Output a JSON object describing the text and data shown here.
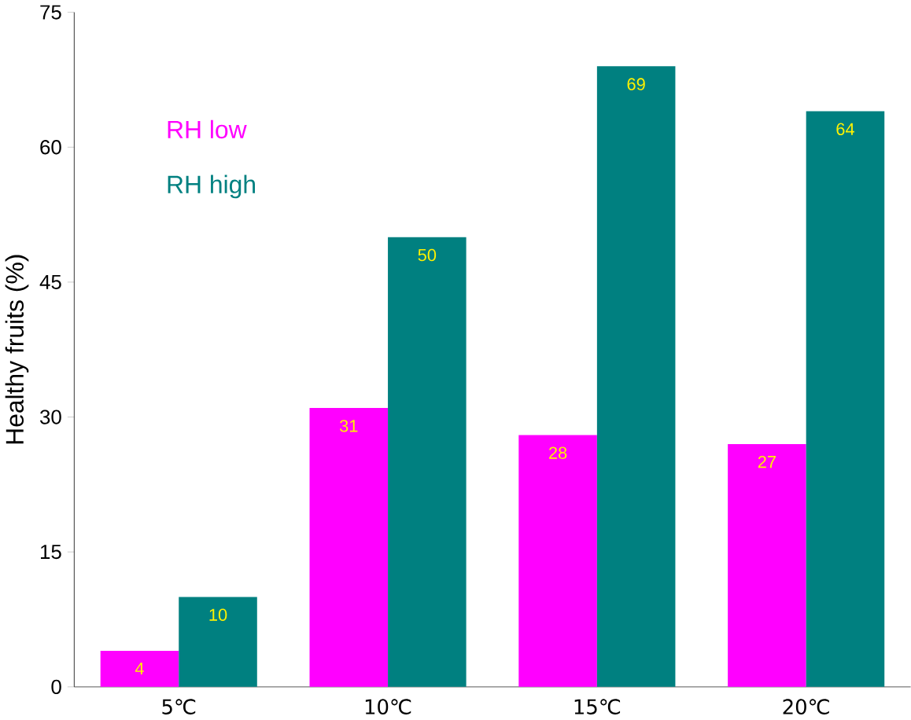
{
  "chart_data": {
    "type": "bar",
    "ylabel": "Healthy fruits (%)",
    "categories": [
      "5℃",
      "10℃",
      "15℃",
      "20℃"
    ],
    "series": [
      {
        "name": "RH low",
        "color": "#ff00ff",
        "values": [
          4,
          31,
          28,
          27
        ]
      },
      {
        "name": "RH high",
        "color": "#008080",
        "values": [
          10,
          50,
          69,
          64
        ]
      }
    ],
    "ylim": [
      0,
      75
    ],
    "yticks": [
      0,
      15,
      30,
      45,
      60,
      75
    ],
    "data_labels": true,
    "legend": "top left",
    "grid": false
  }
}
